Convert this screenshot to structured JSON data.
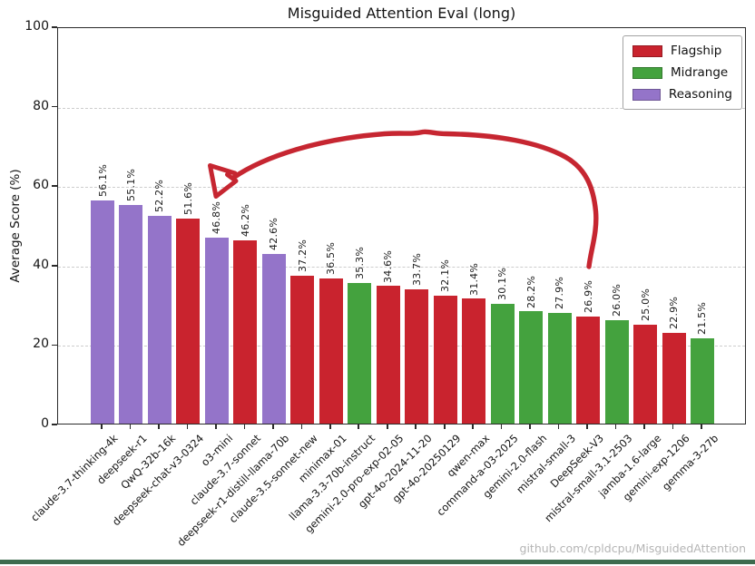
{
  "page": {
    "watermark": "github.com/cpldcpu/MisguidedAttention",
    "bottom_bar_color": "#3e6b4e"
  },
  "chart_data": {
    "type": "bar",
    "title": "Misguided Attention Eval (long)",
    "xlabel": "",
    "ylabel": "Average Score (%)",
    "ylim": [
      0,
      100
    ],
    "yticks": [
      0,
      20,
      40,
      60,
      80,
      100
    ],
    "grid": "horizontal dashed gridlines at 20/40/60/80",
    "legend_position": "upper right",
    "legend": [
      {
        "label": "Flagship",
        "color": "#c9232e"
      },
      {
        "label": "Midrange",
        "color": "#44a23e"
      },
      {
        "label": "Reasoning",
        "color": "#9474c9"
      }
    ],
    "group_colors": {
      "Flagship": "#c9232e",
      "Midrange": "#44a23e",
      "Reasoning": "#9474c9"
    },
    "bars": [
      {
        "model": "claude-3.7-thinking-4k",
        "value": 56.1,
        "label": "56.1%",
        "group": "Reasoning"
      },
      {
        "model": "deepseek-r1",
        "value": 55.1,
        "label": "55.1%",
        "group": "Reasoning"
      },
      {
        "model": "QwQ-32b-16k",
        "value": 52.2,
        "label": "52.2%",
        "group": "Reasoning"
      },
      {
        "model": "deepseek-chat-v3-0324",
        "value": 51.6,
        "label": "51.6%",
        "group": "Flagship"
      },
      {
        "model": "o3-mini",
        "value": 46.8,
        "label": "46.8%",
        "group": "Reasoning"
      },
      {
        "model": "claude-3.7-sonnet",
        "value": 46.2,
        "label": "46.2%",
        "group": "Flagship"
      },
      {
        "model": "deepseek-r1-distill-llama-70b",
        "value": 42.6,
        "label": "42.6%",
        "group": "Reasoning"
      },
      {
        "model": "claude-3.5-sonnet-new",
        "value": 37.2,
        "label": "37.2%",
        "group": "Flagship"
      },
      {
        "model": "minimax-01",
        "value": 36.5,
        "label": "36.5%",
        "group": "Flagship"
      },
      {
        "model": "llama-3.3-70b-instruct",
        "value": 35.3,
        "label": "35.3%",
        "group": "Midrange"
      },
      {
        "model": "gemini-2.0-pro-exp-02-05",
        "value": 34.6,
        "label": "34.6%",
        "group": "Flagship"
      },
      {
        "model": "gpt-4o-2024-11-20",
        "value": 33.7,
        "label": "33.7%",
        "group": "Flagship"
      },
      {
        "model": "gpt-4o-20250129",
        "value": 32.1,
        "label": "32.1%",
        "group": "Flagship"
      },
      {
        "model": "qwen-max",
        "value": 31.4,
        "label": "31.4%",
        "group": "Flagship"
      },
      {
        "model": "command-a-03-2025",
        "value": 30.1,
        "label": "30.1%",
        "group": "Midrange"
      },
      {
        "model": "gemini-2.0-flash",
        "value": 28.2,
        "label": "28.2%",
        "group": "Midrange"
      },
      {
        "model": "mistral-small-3",
        "value": 27.9,
        "label": "27.9%",
        "group": "Midrange"
      },
      {
        "model": "DeepSeek-V3",
        "value": 26.9,
        "label": "26.9%",
        "group": "Flagship"
      },
      {
        "model": "mistral-small-3.1-2503",
        "value": 26.0,
        "label": "26.0%",
        "group": "Midrange"
      },
      {
        "model": "jamba-1.6-large",
        "value": 25.0,
        "label": "25.0%",
        "group": "Flagship"
      },
      {
        "model": "gemini-exp-1206",
        "value": 22.9,
        "label": "22.9%",
        "group": "Flagship"
      },
      {
        "model": "gemma-3-27b",
        "value": 21.5,
        "label": "21.5%",
        "group": "Midrange"
      }
    ],
    "annotation": {
      "type": "hand-drawn arrow",
      "color": "#c62631",
      "from": "above DeepSeek-V3 bar",
      "to": "o3-mini bar"
    }
  }
}
